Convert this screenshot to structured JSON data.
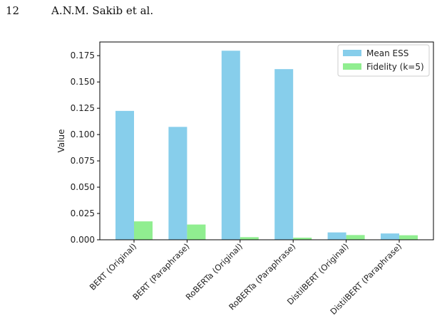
{
  "header": {
    "page_number": "12",
    "running_head": "A.N.M. Sakib et al."
  },
  "chart_data": {
    "type": "bar",
    "categories": [
      "BERT (Original)",
      "BERT (Paraphrase)",
      "RoBERTa (Original)",
      "RoBERTa (Paraphrase)",
      "DistilBERT (Original)",
      "DistilBERT (Paraphrase)"
    ],
    "series": [
      {
        "name": "Mean ESS",
        "color": "#87ceeb",
        "values": [
          0.1225,
          0.1073,
          0.1797,
          0.1622,
          0.007,
          0.006
        ]
      },
      {
        "name": "Fidelity (k=5)",
        "color": "#90ee90",
        "values": [
          0.0175,
          0.0145,
          0.0025,
          0.002,
          0.0045,
          0.0043
        ]
      }
    ],
    "ylabel": "Value",
    "xlabel": "",
    "ylim": [
      0,
      0.188
    ],
    "yticks": [
      0.0,
      0.025,
      0.05,
      0.075,
      0.1,
      0.125,
      0.15,
      0.175
    ],
    "ytick_labels": [
      "0.000",
      "0.025",
      "0.050",
      "0.075",
      "0.100",
      "0.125",
      "0.150",
      "0.175"
    ],
    "grid": false,
    "legend_position": "top-right"
  }
}
